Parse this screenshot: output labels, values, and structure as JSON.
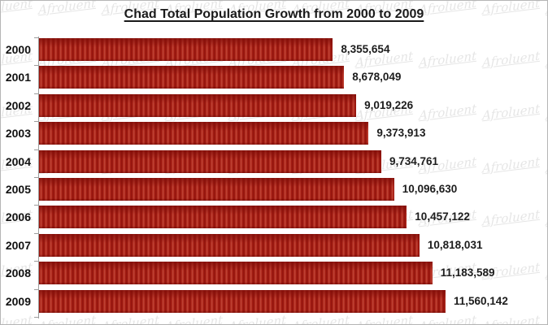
{
  "title": "Chad Total Population Growth from 2000 to 2009",
  "watermark": {
    "text": "Afroluent"
  },
  "colors": {
    "bar_base": "#A81E14",
    "bar_stripe_light": "#C14538",
    "bar_stripe_dark": "#8F140D",
    "axis": "#9C9C9C",
    "border": "#B5B5B5",
    "text": "#1A1A1A",
    "background": "#FFFFFF"
  },
  "chart_data": {
    "type": "bar",
    "orientation": "horizontal",
    "title": "Chad Total Population Growth from 2000 to 2009",
    "categories": [
      "2000",
      "2001",
      "2002",
      "2003",
      "2004",
      "2005",
      "2006",
      "2007",
      "2008",
      "2009"
    ],
    "values": [
      8355654,
      8678049,
      9019226,
      9373913,
      9734761,
      10096630,
      10457122,
      10818031,
      11183589,
      11560142
    ],
    "value_labels": [
      "8,355,654",
      "8,678,049",
      "9,019,226",
      "9,373,913",
      "9,734,761",
      "10,096,630",
      "10,457,122",
      "10,818,031",
      "11,183,589",
      "11,560,142"
    ],
    "xlabel": "",
    "ylabel": "",
    "xlim": [
      0,
      14000000
    ],
    "grid": false,
    "legend": null,
    "data_labels": true
  }
}
